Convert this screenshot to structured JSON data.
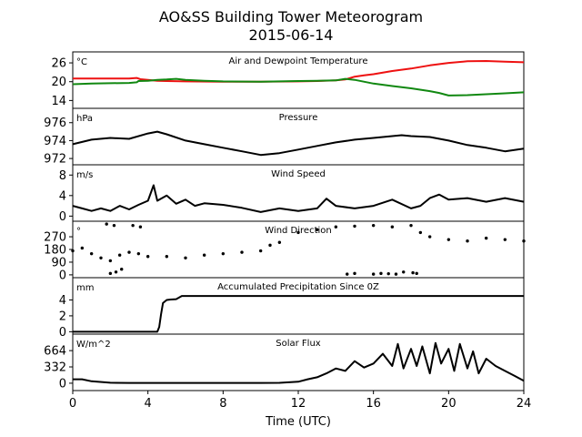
{
  "title": "AO&SS Building Tower Meteorogram",
  "subtitle": "2015-06-14",
  "xlabel": "Time (UTC)",
  "chart_data": [
    {
      "type": "line",
      "title": "Air and Dewpoint Temperature",
      "unit": "°C",
      "xlim": [
        0,
        24
      ],
      "ylim": [
        11.5,
        29.5
      ],
      "yticks": [
        14,
        20,
        26
      ],
      "series": [
        {
          "color": "#ee1111",
          "x": [
            0,
            1,
            2,
            3,
            3.4,
            3.6,
            4,
            4.5,
            5,
            6,
            8,
            10,
            12,
            13,
            14,
            14.5,
            15,
            15.5,
            16,
            17,
            18,
            19,
            20,
            21,
            22,
            23,
            24
          ],
          "y": [
            21,
            21,
            21,
            21,
            21.2,
            20.8,
            20.6,
            20.3,
            20.2,
            20.1,
            20,
            20,
            20.1,
            20.2,
            20.4,
            20.7,
            21.6,
            22,
            22.4,
            23.4,
            24.2,
            25.2,
            26,
            26.5,
            26.6,
            26.4,
            26.2
          ]
        },
        {
          "color": "#118811",
          "x": [
            0,
            1,
            2,
            3,
            3.4,
            3.5,
            4,
            4.5,
            5,
            5.5,
            6,
            7,
            8,
            10,
            12,
            13,
            14,
            14.5,
            15,
            16,
            17,
            18,
            19,
            19.5,
            20,
            21,
            22,
            23,
            24
          ],
          "y": [
            19.2,
            19.4,
            19.5,
            19.6,
            19.8,
            20.2,
            20.3,
            20.6,
            20.7,
            20.9,
            20.6,
            20.3,
            20.1,
            20,
            20.2,
            20.3,
            20.4,
            20.9,
            20.6,
            19.4,
            18.6,
            17.9,
            17,
            16.4,
            15.6,
            15.7,
            16,
            16.3,
            16.6
          ]
        }
      ]
    },
    {
      "type": "line",
      "title": "Pressure",
      "unit": "hPa",
      "xlim": [
        0,
        24
      ],
      "ylim": [
        971.3,
        977.6
      ],
      "yticks": [
        972,
        974,
        976
      ],
      "series": [
        {
          "color": "#000000",
          "x": [
            0,
            1,
            2,
            3,
            4,
            4.5,
            5,
            6,
            7,
            8,
            9,
            10,
            11,
            12,
            13,
            14,
            15,
            16,
            17,
            17.5,
            18,
            19,
            20,
            21,
            22,
            23,
            24
          ],
          "y": [
            973.6,
            974.1,
            974.3,
            974.2,
            974.8,
            975.0,
            974.7,
            974.0,
            973.6,
            973.2,
            972.8,
            972.4,
            972.6,
            973.0,
            973.4,
            973.8,
            974.1,
            974.3,
            974.5,
            974.6,
            974.5,
            974.4,
            974.0,
            973.5,
            973.2,
            972.8,
            973.1
          ]
        }
      ]
    },
    {
      "type": "line",
      "title": "Wind Speed",
      "unit": "m/s",
      "xlim": [
        0,
        24
      ],
      "ylim": [
        -1,
        10
      ],
      "yticks": [
        0,
        4,
        8
      ],
      "series": [
        {
          "color": "#000000",
          "x": [
            0,
            0.5,
            1,
            1.5,
            2,
            2.5,
            3,
            3.5,
            4,
            4.3,
            4.5,
            5,
            5.5,
            6,
            6.5,
            7,
            8,
            9,
            10,
            11,
            12,
            13,
            13.5,
            14,
            15,
            16,
            17,
            18,
            18.5,
            19,
            19.5,
            20,
            21,
            22,
            23,
            24
          ],
          "y": [
            2,
            1.5,
            1,
            1.5,
            1,
            2,
            1.3,
            2.2,
            3,
            6,
            3,
            4,
            2.4,
            3.2,
            2,
            2.5,
            2.2,
            1.6,
            0.8,
            1.5,
            1,
            1.5,
            3.4,
            2,
            1.5,
            2,
            3.2,
            1.5,
            2,
            3.5,
            4.2,
            3.2,
            3.5,
            2.8,
            3.5,
            2.8
          ]
        }
      ]
    },
    {
      "type": "scatter",
      "title": "Wind Direction",
      "unit": "°",
      "xlim": [
        0,
        24
      ],
      "ylim": [
        -20,
        380
      ],
      "yticks": [
        0,
        90,
        180,
        270
      ],
      "series": [
        {
          "color": "#000000",
          "x": [
            0,
            0.5,
            1,
            1.5,
            2,
            2.5,
            3,
            3.5,
            4,
            5,
            6,
            7,
            8,
            9,
            10,
            10.5,
            11,
            12,
            13,
            14,
            15,
            16,
            17,
            18,
            18.5,
            19,
            20,
            21,
            22,
            23,
            24,
            2,
            2.3,
            2.6,
            3.2,
            3.6,
            1.8,
            2.2,
            14.6,
            15,
            16,
            16.4,
            16.8,
            17.2,
            17.6,
            18.1,
            18.3
          ],
          "y": [
            170,
            190,
            150,
            120,
            100,
            140,
            160,
            150,
            130,
            130,
            120,
            140,
            150,
            160,
            170,
            210,
            230,
            300,
            320,
            340,
            345,
            350,
            340,
            350,
            300,
            270,
            250,
            240,
            260,
            250,
            240,
            10,
            20,
            40,
            350,
            340,
            360,
            350,
            5,
            10,
            5,
            10,
            8,
            5,
            20,
            15,
            10
          ]
        }
      ]
    },
    {
      "type": "line",
      "title": "Accumulated Precipitation Since 0Z",
      "unit": "mm",
      "xlim": [
        0,
        24
      ],
      "ylim": [
        -0.3,
        6.8
      ],
      "yticks": [
        0,
        2,
        4
      ],
      "series": [
        {
          "color": "#000000",
          "x": [
            0,
            4.5,
            4.6,
            4.7,
            4.8,
            5.0,
            5.2,
            5.5,
            5.8,
            24
          ],
          "y": [
            0,
            0,
            0.6,
            2.2,
            3.6,
            4.0,
            4.05,
            4.1,
            4.5,
            4.5
          ]
        }
      ]
    },
    {
      "type": "line",
      "title": "Solar Flux",
      "unit": "W/m^2",
      "xlim": [
        0,
        24
      ],
      "ylim": [
        -150,
        1000
      ],
      "yticks": [
        0,
        332,
        664
      ],
      "series": [
        {
          "color": "#000000",
          "x": [
            0,
            0.5,
            1,
            2,
            3,
            4,
            6,
            8,
            10,
            11,
            12,
            12.5,
            13,
            13.5,
            14,
            14.5,
            15,
            15.5,
            16,
            16.5,
            17,
            17.3,
            17.6,
            18,
            18.3,
            18.6,
            19,
            19.3,
            19.6,
            20,
            20.3,
            20.6,
            21,
            21.3,
            21.6,
            22,
            22.5,
            23,
            23.5,
            24
          ],
          "y": [
            80,
            80,
            40,
            10,
            5,
            5,
            5,
            5,
            5,
            8,
            30,
            80,
            120,
            200,
            300,
            250,
            450,
            320,
            400,
            600,
            350,
            800,
            300,
            700,
            350,
            750,
            200,
            820,
            400,
            700,
            250,
            800,
            300,
            650,
            200,
            500,
            350,
            250,
            150,
            50
          ]
        }
      ]
    }
  ]
}
